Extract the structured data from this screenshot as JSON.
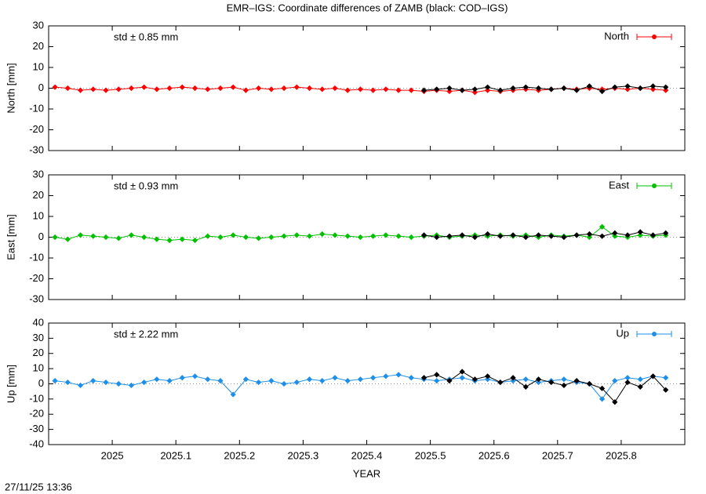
{
  "title": "EMR–IGS: Coordinate differences of ZAMB (black: COD–IGS)",
  "timestamp": "27/11/25 13:36",
  "chart_data": [
    {
      "type": "line",
      "ylabel": "North [mm]",
      "annotation": "std ± 0.85 mm",
      "x": [
        2024.91,
        2024.93,
        2024.95,
        2024.97,
        2024.99,
        2025.01,
        2025.03,
        2025.05,
        2025.07,
        2025.09,
        2025.11,
        2025.13,
        2025.15,
        2025.17,
        2025.19,
        2025.21,
        2025.23,
        2025.25,
        2025.27,
        2025.29,
        2025.31,
        2025.33,
        2025.35,
        2025.37,
        2025.39,
        2025.41,
        2025.43,
        2025.45,
        2025.47,
        2025.49,
        2025.51,
        2025.53,
        2025.55,
        2025.57,
        2025.59,
        2025.61,
        2025.63,
        2025.65,
        2025.67,
        2025.69,
        2025.71,
        2025.73,
        2025.75,
        2025.77,
        2025.79,
        2025.81,
        2025.83,
        2025.85,
        2025.87
      ],
      "series": [
        {
          "name": "North",
          "color": "#ff0000",
          "values": [
            0.5,
            0,
            -1,
            -0.5,
            -1,
            -0.5,
            0,
            0.5,
            -0.5,
            0,
            0.5,
            0,
            -0.5,
            0,
            0.5,
            -1,
            0,
            -0.5,
            0,
            0.5,
            0,
            -0.5,
            0,
            -1,
            -0.5,
            -1,
            -0.5,
            -1,
            -1,
            -1.5,
            -1,
            -1.5,
            -1,
            -2,
            -1,
            -1.5,
            -1,
            -0.5,
            -1,
            -0.5,
            0,
            -0.5,
            0,
            -0.5,
            0,
            -0.5,
            0,
            -0.5,
            -1
          ]
        },
        {
          "color": "#000000",
          "values": [
            null,
            null,
            null,
            null,
            null,
            null,
            null,
            null,
            null,
            null,
            null,
            null,
            null,
            null,
            null,
            null,
            null,
            null,
            null,
            null,
            null,
            null,
            null,
            null,
            null,
            null,
            null,
            null,
            null,
            -1,
            -0.5,
            0,
            -1,
            -0.5,
            0.5,
            -1,
            0,
            0.5,
            0,
            -0.5,
            0,
            -1,
            1,
            -1.5,
            0.5,
            1,
            0,
            1,
            0.5
          ]
        }
      ],
      "xlim": [
        2024.9,
        2025.9
      ],
      "xticks": [
        2025,
        2025.1,
        2025.2,
        2025.3,
        2025.4,
        2025.5,
        2025.6,
        2025.7,
        2025.8
      ],
      "ylim": [
        -30,
        30
      ],
      "yticks": [
        -30,
        -20,
        -10,
        0,
        10,
        20,
        30
      ]
    },
    {
      "type": "line",
      "ylabel": "East [mm]",
      "annotation": "std ± 0.93 mm",
      "x": [
        2024.91,
        2024.93,
        2024.95,
        2024.97,
        2024.99,
        2025.01,
        2025.03,
        2025.05,
        2025.07,
        2025.09,
        2025.11,
        2025.13,
        2025.15,
        2025.17,
        2025.19,
        2025.21,
        2025.23,
        2025.25,
        2025.27,
        2025.29,
        2025.31,
        2025.33,
        2025.35,
        2025.37,
        2025.39,
        2025.41,
        2025.43,
        2025.45,
        2025.47,
        2025.49,
        2025.51,
        2025.53,
        2025.55,
        2025.57,
        2025.59,
        2025.61,
        2025.63,
        2025.65,
        2025.67,
        2025.69,
        2025.71,
        2025.73,
        2025.75,
        2025.77,
        2025.79,
        2025.81,
        2025.83,
        2025.85,
        2025.87
      ],
      "series": [
        {
          "name": "East",
          "color": "#00c000",
          "values": [
            0,
            -1,
            1,
            0.5,
            0,
            -0.5,
            1,
            0,
            -1,
            -1.5,
            -1,
            -1.5,
            0.5,
            0,
            1,
            0,
            -0.5,
            0,
            0.5,
            1,
            0.5,
            1.5,
            1,
            0.5,
            0,
            0.5,
            1,
            0.5,
            0,
            0.5,
            1,
            0,
            0.5,
            1,
            0.5,
            1,
            0.5,
            1,
            0,
            1,
            0.5,
            1,
            0,
            5,
            0.5,
            0,
            1,
            0.5,
            1
          ]
        },
        {
          "color": "#000000",
          "values": [
            null,
            null,
            null,
            null,
            null,
            null,
            null,
            null,
            null,
            null,
            null,
            null,
            null,
            null,
            null,
            null,
            null,
            null,
            null,
            null,
            null,
            null,
            null,
            null,
            null,
            null,
            null,
            null,
            null,
            1,
            0,
            0.5,
            1,
            0,
            1.5,
            0.5,
            1,
            0,
            1,
            0.5,
            0,
            1,
            1.5,
            0.5,
            2,
            1,
            2.5,
            1,
            2
          ]
        }
      ],
      "xlim": [
        2024.9,
        2025.9
      ],
      "xticks": [
        2025,
        2025.1,
        2025.2,
        2025.3,
        2025.4,
        2025.5,
        2025.6,
        2025.7,
        2025.8
      ],
      "ylim": [
        -30,
        30
      ],
      "yticks": [
        -30,
        -20,
        -10,
        0,
        10,
        20,
        30
      ]
    },
    {
      "type": "line",
      "ylabel": "Up [mm]",
      "annotation": "std ± 2.22 mm",
      "xlabel": "YEAR",
      "x": [
        2024.91,
        2024.93,
        2024.95,
        2024.97,
        2024.99,
        2025.01,
        2025.03,
        2025.05,
        2025.07,
        2025.09,
        2025.11,
        2025.13,
        2025.15,
        2025.17,
        2025.19,
        2025.21,
        2025.23,
        2025.25,
        2025.27,
        2025.29,
        2025.31,
        2025.33,
        2025.35,
        2025.37,
        2025.39,
        2025.41,
        2025.43,
        2025.45,
        2025.47,
        2025.49,
        2025.51,
        2025.53,
        2025.55,
        2025.57,
        2025.59,
        2025.61,
        2025.63,
        2025.65,
        2025.67,
        2025.69,
        2025.71,
        2025.73,
        2025.75,
        2025.77,
        2025.79,
        2025.81,
        2025.83,
        2025.85,
        2025.87
      ],
      "series": [
        {
          "name": "Up",
          "color": "#1e8fe8",
          "values": [
            2,
            1,
            -1,
            2,
            1,
            0,
            -1,
            1,
            3,
            2,
            4,
            5,
            3,
            2,
            -7,
            3,
            1,
            2,
            0,
            1,
            3,
            2,
            4,
            2,
            3,
            4,
            5,
            6,
            4,
            3,
            2,
            3,
            4,
            2,
            3,
            1,
            2,
            3,
            1,
            2,
            3,
            1,
            0,
            -10,
            2,
            4,
            3,
            5,
            4
          ]
        },
        {
          "color": "#000000",
          "values": [
            null,
            null,
            null,
            null,
            null,
            null,
            null,
            null,
            null,
            null,
            null,
            null,
            null,
            null,
            null,
            null,
            null,
            null,
            null,
            null,
            null,
            null,
            null,
            null,
            null,
            null,
            null,
            null,
            null,
            4,
            6,
            2,
            8,
            3,
            5,
            1,
            4,
            -2,
            3,
            1,
            -1,
            2,
            0,
            -3,
            -12,
            1,
            -2,
            5,
            -4
          ]
        }
      ],
      "xlim": [
        2024.9,
        2025.9
      ],
      "xticks": [
        2025,
        2025.1,
        2025.2,
        2025.3,
        2025.4,
        2025.5,
        2025.6,
        2025.7,
        2025.8
      ],
      "ylim": [
        -40,
        40
      ],
      "yticks": [
        -40,
        -30,
        -20,
        -10,
        0,
        10,
        20,
        30,
        40
      ]
    }
  ]
}
